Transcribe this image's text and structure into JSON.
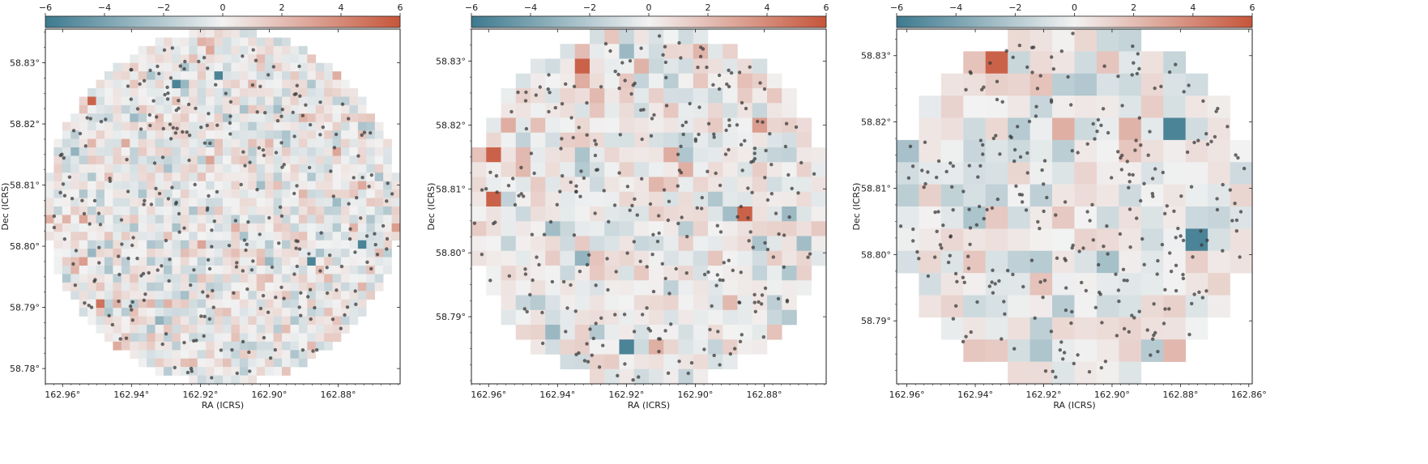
{
  "colors": {
    "negative": "#3d7a8f",
    "neutral": "#f2f2f2",
    "positive": "#c6553a",
    "point": "#3a3a3a"
  },
  "colorbar": {
    "range": [
      -6,
      6
    ],
    "ticks": [
      "−6",
      "−4",
      "−2",
      "0",
      "2",
      "4",
      "6"
    ],
    "tick_values": [
      -6,
      -4,
      -2,
      0,
      2,
      4,
      6
    ]
  },
  "chart_data": [
    {
      "type": "heatmap",
      "panel": "left",
      "xlabel": "RA (ICRS)",
      "ylabel": "Dec (ICRS)",
      "x_ticks": [
        "162.96°",
        "162.94°",
        "162.92°",
        "162.90°",
        "162.88°"
      ],
      "x_tick_values": [
        162.96,
        162.94,
        162.92,
        162.9,
        162.88
      ],
      "y_ticks": [
        "58.83°",
        "58.82°",
        "58.81°",
        "58.80°",
        "58.79°",
        "58.78°"
      ],
      "y_tick_values": [
        58.83,
        58.82,
        58.81,
        58.8,
        58.79,
        58.78
      ],
      "xlim": [
        162.965,
        162.862
      ],
      "ylim": [
        58.7775,
        58.8355
      ],
      "grid_cells": [
        42,
        42
      ],
      "value_range": [
        -6,
        6
      ],
      "points_shown": 300
    },
    {
      "type": "heatmap",
      "panel": "middle",
      "xlabel": "RA (ICRS)",
      "ylabel": "Dec (ICRS)",
      "x_ticks": [
        "162.96°",
        "162.94°",
        "162.92°",
        "162.90°",
        "162.88°"
      ],
      "x_tick_values": [
        162.96,
        162.94,
        162.92,
        162.9,
        162.88
      ],
      "y_ticks": [
        "58.83°",
        "58.82°",
        "58.81°",
        "58.80°",
        "58.79°"
      ],
      "y_tick_values": [
        58.83,
        58.82,
        58.81,
        58.8,
        58.79
      ],
      "xlim": [
        162.965,
        162.862
      ],
      "ylim": [
        58.7795,
        58.835
      ],
      "grid_cells": [
        24,
        24
      ],
      "value_range": [
        -6,
        6
      ],
      "points_shown": 300
    },
    {
      "type": "heatmap",
      "panel": "right",
      "xlabel": "RA (ICRS)",
      "ylabel": "Dec (ICRS)",
      "x_ticks": [
        "162.96°",
        "162.94°",
        "162.92°",
        "162.90°",
        "162.88°",
        "162.86°"
      ],
      "x_tick_values": [
        162.96,
        162.94,
        162.92,
        162.9,
        162.88,
        162.86
      ],
      "y_ticks": [
        "58.83°",
        "58.82°",
        "58.81°",
        "58.80°",
        "58.79°"
      ],
      "y_tick_values": [
        58.83,
        58.82,
        58.81,
        58.8,
        58.79
      ],
      "xlim": [
        162.963,
        162.859
      ],
      "ylim": [
        58.7805,
        58.834
      ],
      "grid_cells": [
        16,
        16
      ],
      "value_range": [
        -6,
        6
      ],
      "points_shown": 300
    }
  ]
}
